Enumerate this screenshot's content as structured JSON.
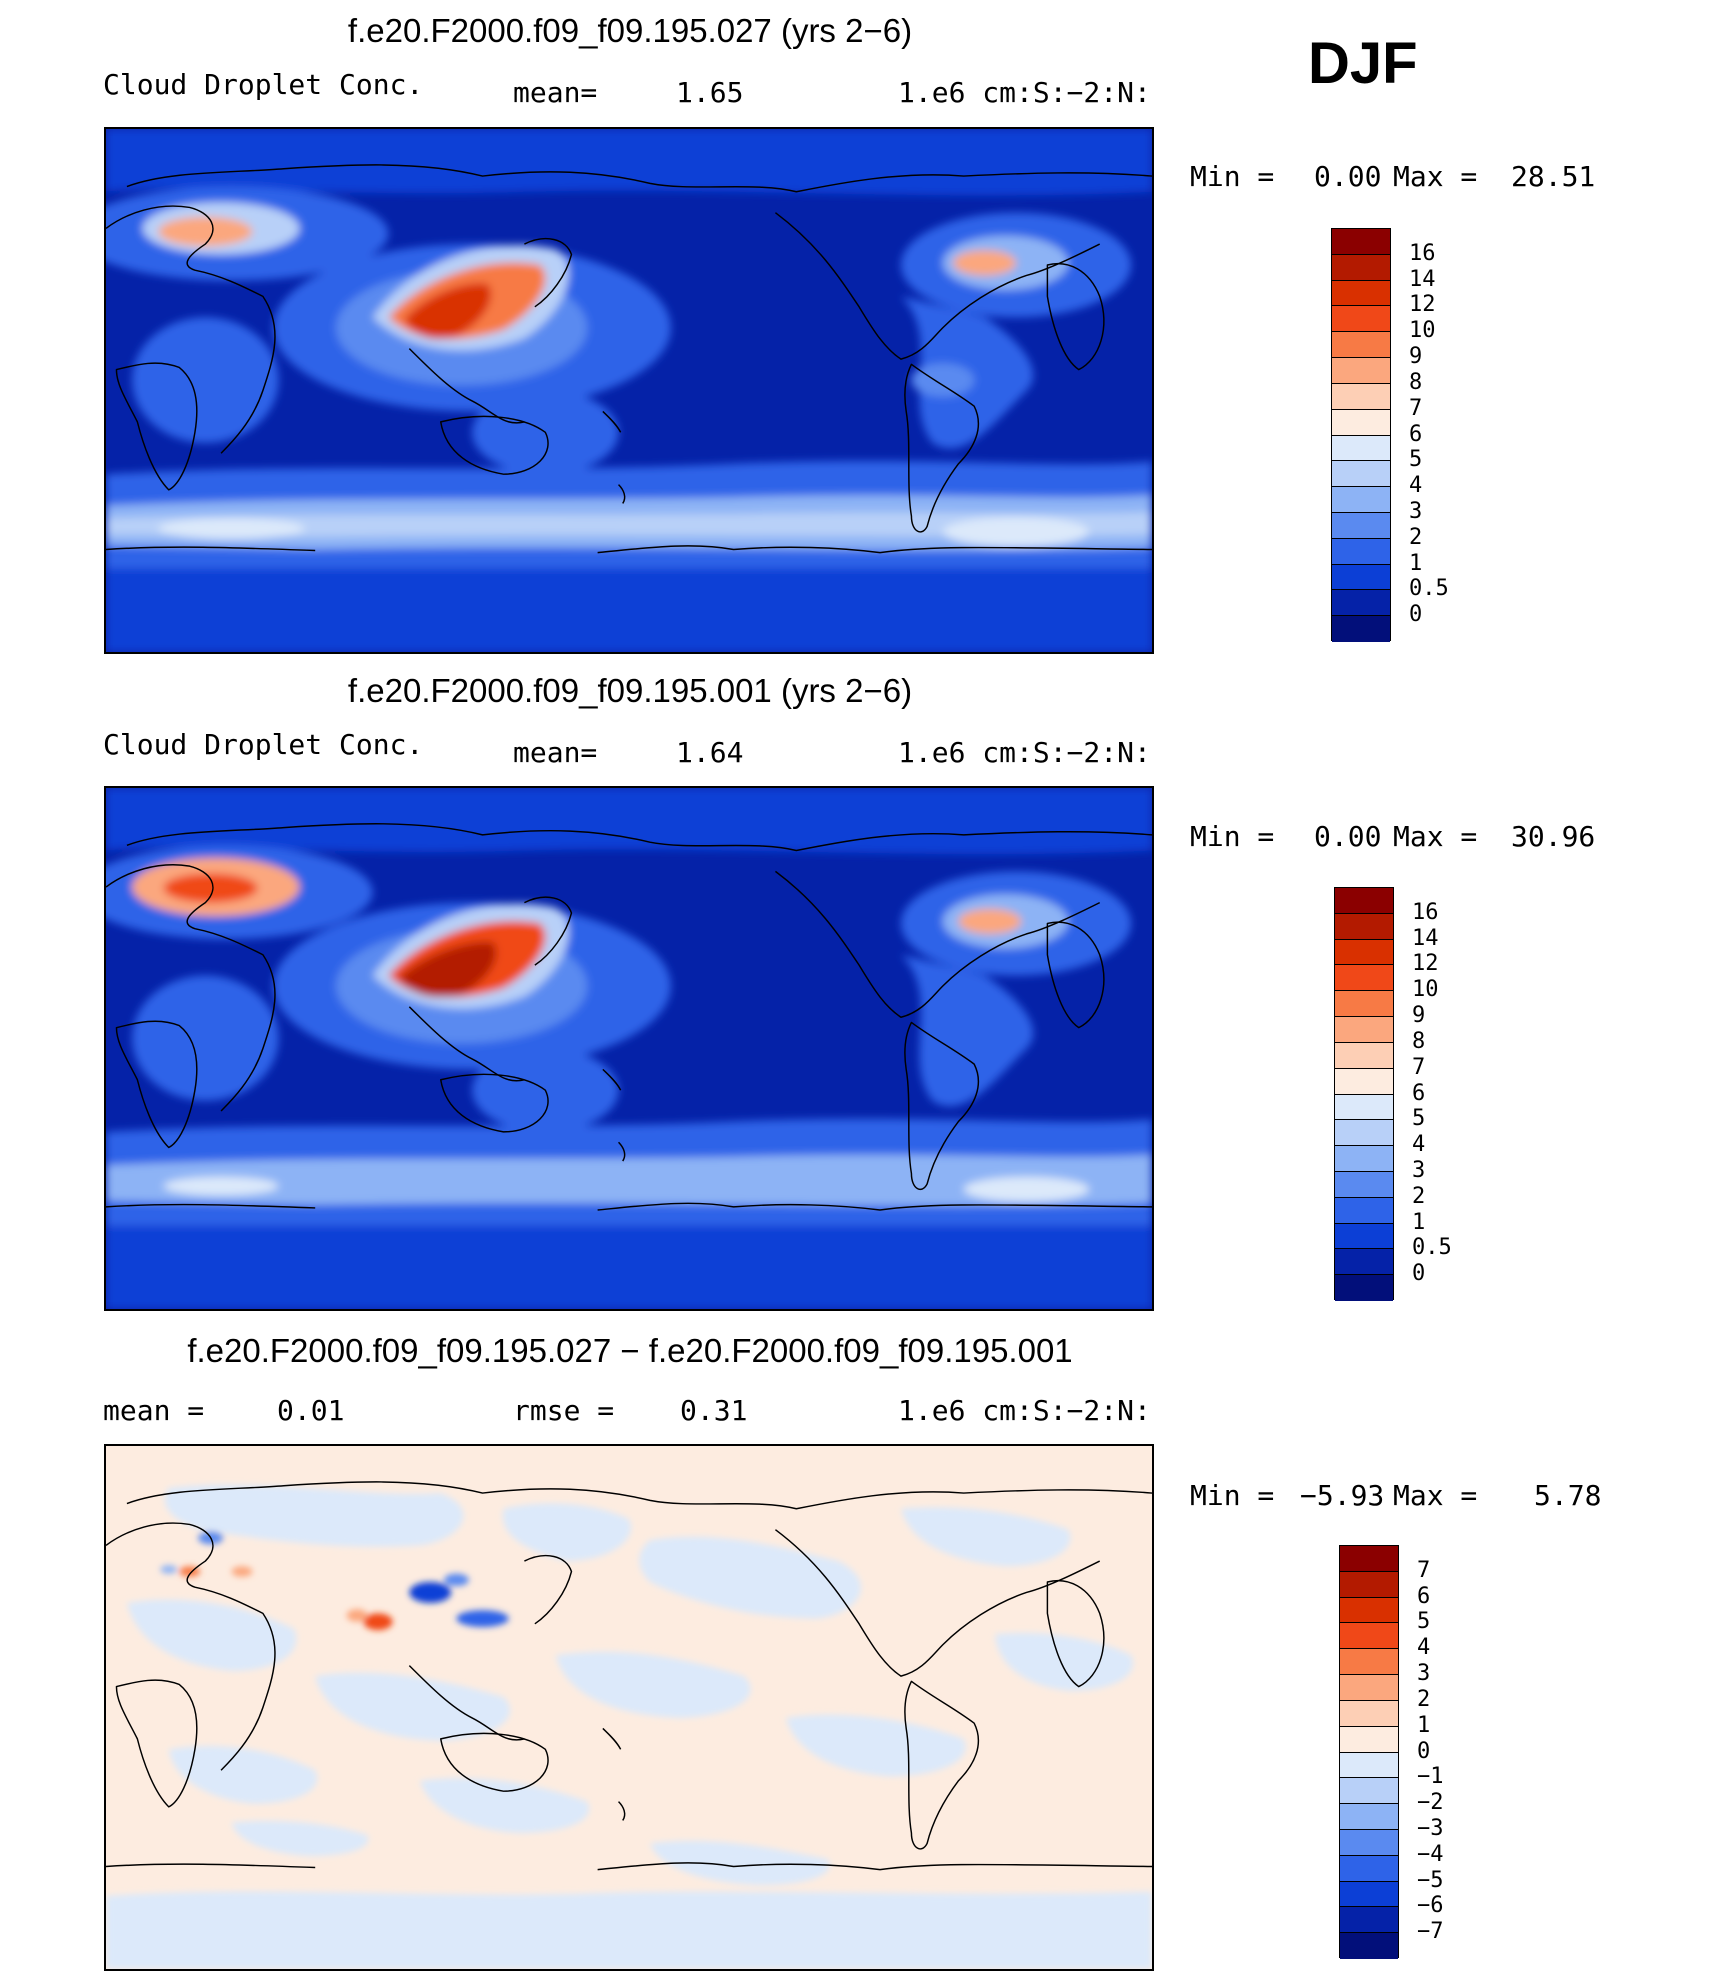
{
  "season": "DJF",
  "panels": [
    {
      "title": "f.e20.F2000.f09_f09.195.027 (yrs 2-6)",
      "left_label": "Cloud Droplet Conc.",
      "stat_label": "mean=",
      "stat_value": "1.65",
      "stat2_label": "",
      "stat2_value": "",
      "units": "1.e6 cm:S:-2:N:",
      "min_label": "Min =",
      "min_value": "0.00",
      "max_label": "Max =",
      "max_value": "28.51",
      "colorbar": {
        "labels": [
          "16",
          "14",
          "12",
          "10",
          "9",
          "8",
          "7",
          "6",
          "5",
          "4",
          "3",
          "2",
          "1",
          "0.5",
          "0"
        ],
        "colors": [
          "#8b0000",
          "#b31a00",
          "#d93000",
          "#f04818",
          "#f77a45",
          "#fba77e",
          "#fdcfb5",
          "#fdece0",
          "#dce9fa",
          "#b8d0f8",
          "#8db3f5",
          "#5a8af0",
          "#2e63e8",
          "#0c3fd6",
          "#0522a8",
          "#020f7a"
        ]
      }
    },
    {
      "title": "f.e20.F2000.f09_f09.195.001 (yrs 2-6)",
      "left_label": "Cloud Droplet Conc.",
      "stat_label": "mean=",
      "stat_value": "1.64",
      "stat2_label": "",
      "stat2_value": "",
      "units": "1.e6 cm:S:-2:N:",
      "min_label": "Min =",
      "min_value": "0.00",
      "max_label": "Max =",
      "max_value": "30.96",
      "colorbar": {
        "labels": [
          "16",
          "14",
          "12",
          "10",
          "9",
          "8",
          "7",
          "6",
          "5",
          "4",
          "3",
          "2",
          "1",
          "0.5",
          "0"
        ],
        "colors": [
          "#8b0000",
          "#b31a00",
          "#d93000",
          "#f04818",
          "#f77a45",
          "#fba77e",
          "#fdcfb5",
          "#fdece0",
          "#dce9fa",
          "#b8d0f8",
          "#8db3f5",
          "#5a8af0",
          "#2e63e8",
          "#0c3fd6",
          "#0522a8",
          "#020f7a"
        ]
      }
    },
    {
      "title": "f.e20.F2000.f09_f09.195.027 - f.e20.F2000.f09_f09.195.001",
      "left_label": "mean =",
      "stat_label": "",
      "stat_value": "0.01",
      "stat2_label": "rmse =",
      "stat2_value": "0.31",
      "units": "1.e6 cm:S:-2:N:",
      "min_label": "Min =",
      "min_value": "-5.93",
      "max_label": "Max =",
      "max_value": "5.78",
      "colorbar": {
        "labels": [
          "7",
          "6",
          "5",
          "4",
          "3",
          "2",
          "1",
          "0",
          "-1",
          "-2",
          "-3",
          "-4",
          "-5",
          "-6",
          "-7"
        ],
        "colors": [
          "#8b0000",
          "#b31a00",
          "#d93000",
          "#f04818",
          "#f77a45",
          "#fba77e",
          "#fdcfb5",
          "#fdece0",
          "#dce9fa",
          "#b8d0f8",
          "#8db3f5",
          "#5a8af0",
          "#2e63e8",
          "#0c3fd6",
          "#0522a8",
          "#020f7a"
        ]
      }
    }
  ]
}
